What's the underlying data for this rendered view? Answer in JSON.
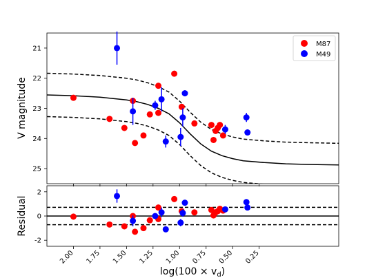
{
  "chart_data": [
    {
      "panel": "main",
      "type": "scatter",
      "title": "",
      "xlabel": "",
      "ylabel": "V magnitude",
      "xlim": [
        2.25,
        -0.5
      ],
      "ylim": [
        25.5,
        20.5
      ],
      "yticks": [
        21,
        22,
        23,
        24,
        25
      ],
      "grid": false,
      "legend": {
        "placement": "top-right",
        "entries": [
          {
            "name": "M87",
            "color": "#ff0000"
          },
          {
            "name": "M49",
            "color": "#0000ff"
          }
        ]
      },
      "series": [
        {
          "name": "M87",
          "color": "#ff0000",
          "points": [
            {
              "x": 2.0,
              "y": 22.65
            },
            {
              "x": 1.66,
              "y": 23.35
            },
            {
              "x": 1.52,
              "y": 23.65
            },
            {
              "x": 1.44,
              "y": 22.75
            },
            {
              "x": 1.42,
              "y": 24.15
            },
            {
              "x": 1.34,
              "y": 23.9
            },
            {
              "x": 1.28,
              "y": 23.2
            },
            {
              "x": 1.2,
              "y": 23.15
            },
            {
              "x": 1.2,
              "y": 22.25
            },
            {
              "x": 1.05,
              "y": 21.85
            },
            {
              "x": 0.98,
              "y": 22.95
            },
            {
              "x": 0.86,
              "y": 23.5
            },
            {
              "x": 0.7,
              "y": 23.55
            },
            {
              "x": 0.68,
              "y": 24.05
            },
            {
              "x": 0.66,
              "y": 23.75
            },
            {
              "x": 0.64,
              "y": 23.65
            },
            {
              "x": 0.62,
              "y": 23.55
            },
            {
              "x": 0.59,
              "y": 23.9
            }
          ]
        },
        {
          "name": "M49",
          "color": "#0000ff",
          "points": [
            {
              "x": 1.59,
              "y": 21.0,
              "err": 0.55
            },
            {
              "x": 1.44,
              "y": 23.1,
              "err": 0.45
            },
            {
              "x": 1.23,
              "y": 22.9,
              "err": 0.15
            },
            {
              "x": 1.17,
              "y": 22.7,
              "err": 0.4
            },
            {
              "x": 1.13,
              "y": 24.1,
              "err": 0.2
            },
            {
              "x": 0.99,
              "y": 23.95,
              "err": 0.3
            },
            {
              "x": 0.97,
              "y": 23.3,
              "err": 0.3
            },
            {
              "x": 0.95,
              "y": 22.5,
              "err": 0.1
            },
            {
              "x": 0.57,
              "y": 23.7,
              "err": 0.15
            },
            {
              "x": 0.37,
              "y": 23.3,
              "err": 0.15
            },
            {
              "x": 0.36,
              "y": 23.8,
              "err": 0.1
            }
          ]
        }
      ],
      "model": {
        "style": "solid",
        "points": [
          [
            2.3,
            22.55
          ],
          [
            2.0,
            22.58
          ],
          [
            1.75,
            22.63
          ],
          [
            1.5,
            22.72
          ],
          [
            1.4,
            22.78
          ],
          [
            1.3,
            22.87
          ],
          [
            1.2,
            23.0
          ],
          [
            1.1,
            23.18
          ],
          [
            1.0,
            23.48
          ],
          [
            0.9,
            23.85
          ],
          [
            0.8,
            24.18
          ],
          [
            0.7,
            24.42
          ],
          [
            0.6,
            24.57
          ],
          [
            0.5,
            24.67
          ],
          [
            0.4,
            24.74
          ],
          [
            0.2,
            24.8
          ],
          [
            0.0,
            24.84
          ],
          [
            -0.2,
            24.86
          ],
          [
            -0.5,
            24.88
          ]
        ]
      },
      "model_band_offset": 0.72
    },
    {
      "panel": "residual",
      "type": "scatter",
      "title": "",
      "xlabel": "log(100 × v",
      "xlabel_sub": "d",
      "xlabel_close": ")",
      "ylabel": "Residual",
      "xlim": [
        2.25,
        -0.5
      ],
      "ylim": [
        -2.5,
        2.5
      ],
      "yticks": [
        -2,
        0,
        2
      ],
      "xticks": [
        2.0,
        1.75,
        1.5,
        1.25,
        1.0,
        0.75,
        0.5,
        0.25
      ],
      "xtick_labels": [
        "2.00",
        "1.75",
        "1.50",
        "1.25",
        "1.00",
        "0.75",
        "0.50",
        "0.25"
      ],
      "reference_lines": [
        0,
        0.72,
        -0.72
      ],
      "series": [
        {
          "name": "M87",
          "color": "#ff0000",
          "points": [
            {
              "x": 2.0,
              "y": -0.05
            },
            {
              "x": 1.66,
              "y": -0.7
            },
            {
              "x": 1.52,
              "y": -0.85
            },
            {
              "x": 1.44,
              "y": 0.0
            },
            {
              "x": 1.42,
              "y": -1.3
            },
            {
              "x": 1.34,
              "y": -1.0
            },
            {
              "x": 1.28,
              "y": -0.35
            },
            {
              "x": 1.2,
              "y": -0.25
            },
            {
              "x": 1.2,
              "y": 0.7
            },
            {
              "x": 1.05,
              "y": 1.4
            },
            {
              "x": 0.98,
              "y": 0.4
            },
            {
              "x": 0.86,
              "y": 0.3
            },
            {
              "x": 0.7,
              "y": 0.5
            },
            {
              "x": 0.68,
              "y": 0.05
            },
            {
              "x": 0.66,
              "y": 0.3
            },
            {
              "x": 0.64,
              "y": 0.4
            },
            {
              "x": 0.62,
              "y": 0.6
            },
            {
              "x": 0.59,
              "y": 0.45
            }
          ]
        },
        {
          "name": "M49",
          "color": "#0000ff",
          "points": [
            {
              "x": 1.59,
              "y": 1.65,
              "err": 0.55
            },
            {
              "x": 1.44,
              "y": -0.4,
              "err": 0.45
            },
            {
              "x": 1.23,
              "y": 0.0,
              "err": 0.15
            },
            {
              "x": 1.17,
              "y": 0.3,
              "err": 0.4
            },
            {
              "x": 1.13,
              "y": -1.1,
              "err": 0.2
            },
            {
              "x": 0.99,
              "y": -0.55,
              "err": 0.3
            },
            {
              "x": 0.97,
              "y": 0.25,
              "err": 0.3
            },
            {
              "x": 0.95,
              "y": 1.1,
              "err": 0.1
            },
            {
              "x": 0.57,
              "y": 0.55,
              "err": 0.15
            },
            {
              "x": 0.37,
              "y": 1.15,
              "err": 0.15
            },
            {
              "x": 0.36,
              "y": 0.7,
              "err": 0.1
            }
          ]
        }
      ]
    }
  ]
}
